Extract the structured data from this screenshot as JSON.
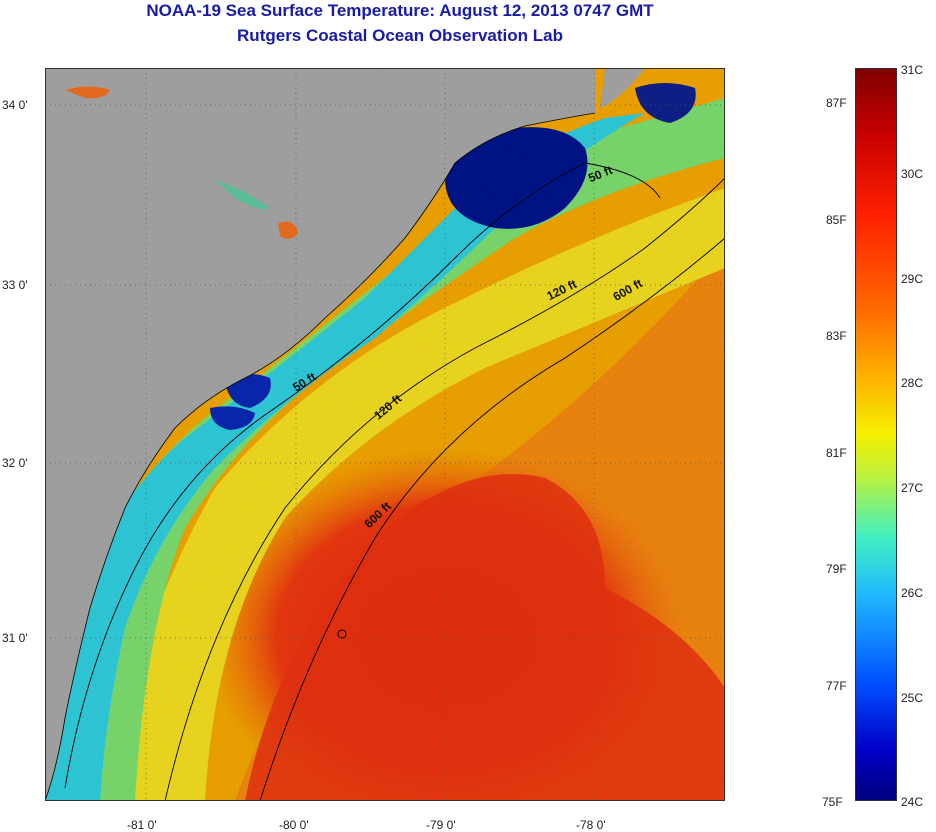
{
  "title": {
    "line1": "NOAA-19 Sea Surface Temperature:  August 12, 2013 0747 GMT",
    "line2": "Rutgers Coastal Ocean Observation Lab"
  },
  "map": {
    "lat_labels": [
      "34 0'",
      "33 0'",
      "32 0'",
      "31 0'"
    ],
    "lon_labels": [
      "-81 0'",
      "-80 0'",
      "-79 0'",
      "-78 0'"
    ],
    "isobath_labels": [
      "50 ft",
      "120 ft",
      "600 ft",
      "50 ft",
      "120 ft",
      "600 ft"
    ],
    "colors": {
      "land": "#a8a8a8",
      "ocean_warm": "#ee3010",
      "ocean_mid": "#f5b000",
      "cool": "#30d0e0",
      "cold": "#00008c"
    }
  },
  "colorbar": {
    "celsius": [
      "31C",
      "30C",
      "29C",
      "28C",
      "27C",
      "26C",
      "25C",
      "24C"
    ],
    "fahrenheit": [
      "87F",
      "85F",
      "83F",
      "81F",
      "79F",
      "77F",
      "75F"
    ]
  }
}
